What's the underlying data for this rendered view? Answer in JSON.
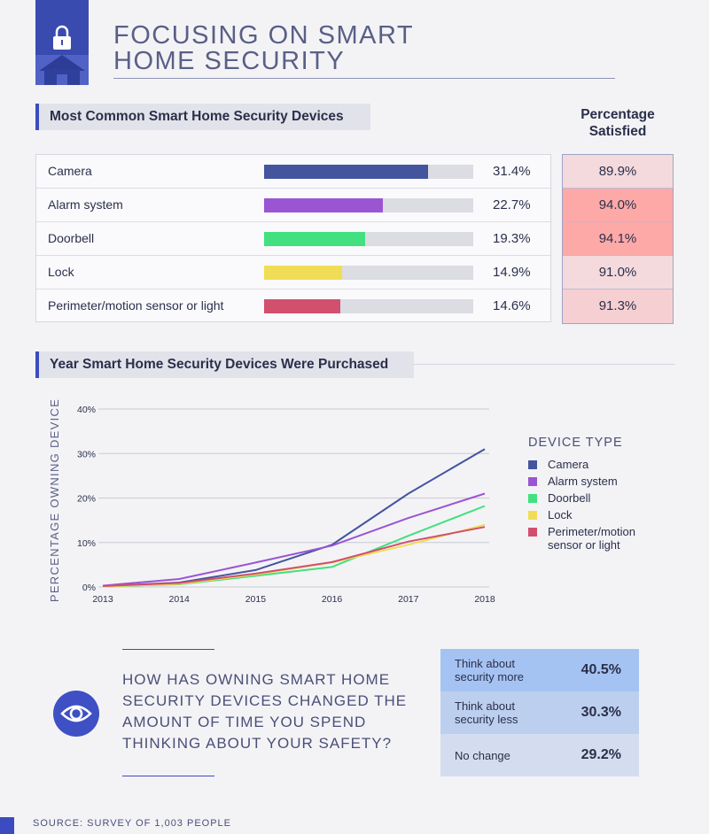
{
  "title": {
    "line1": "FOCUSING ON SMART",
    "line2": "HOME SECURITY"
  },
  "colors": {
    "accent": "#3b4cc0",
    "badge": "#3a4bb0"
  },
  "devices_section": {
    "heading": "Most Common Smart Home Security Devices",
    "satisfied_heading_line1": "Percentage",
    "satisfied_heading_line2": "Satisfied"
  },
  "chart_data": [
    {
      "type": "bar",
      "orientation": "horizontal",
      "title": "Most Common Smart Home Security Devices",
      "categories": [
        "Camera",
        "Alarm system",
        "Doorbell",
        "Lock",
        "Perimeter/motion sensor or light"
      ],
      "values": [
        31.4,
        22.7,
        19.3,
        14.9,
        14.6
      ],
      "value_labels": [
        "31.4%",
        "22.7%",
        "19.3%",
        "14.9%",
        "14.6%"
      ],
      "colors": [
        "#44559e",
        "#9a55d2",
        "#42e07e",
        "#f1dd55",
        "#d24f6e"
      ],
      "xlim": [
        0,
        40
      ],
      "satisfied": {
        "title": "Percentage Satisfied",
        "values": [
          89.9,
          94.0,
          94.1,
          91.0,
          91.3
        ],
        "labels": [
          "89.9%",
          "94.0%",
          "94.1%",
          "91.0%",
          "91.3%"
        ]
      }
    },
    {
      "type": "line",
      "title": "Year Smart Home Security Devices Were Purchased",
      "ylabel": "PERCENTAGE OWNING DEVICE",
      "xlabel": "",
      "x": [
        "2013",
        "2014",
        "2015",
        "2016",
        "2017",
        "2018"
      ],
      "ylim": [
        0,
        40
      ],
      "yticks": [
        "0%",
        "10%",
        "20%",
        "30%",
        "40%"
      ],
      "legend_title": "DEVICE TYPE",
      "series": [
        {
          "name": "Camera",
          "color": "#44559e",
          "values": [
            0.2,
            1.0,
            3.8,
            9.5,
            21.0,
            31.0
          ]
        },
        {
          "name": "Alarm system",
          "color": "#9a55d2",
          "values": [
            0.3,
            1.8,
            5.5,
            9.3,
            15.5,
            21.0
          ]
        },
        {
          "name": "Doorbell",
          "color": "#42e07e",
          "values": [
            0.1,
            0.6,
            2.5,
            4.5,
            11.5,
            18.2
          ]
        },
        {
          "name": "Lock",
          "color": "#f1dd55",
          "values": [
            0.1,
            0.7,
            2.8,
            5.5,
            9.5,
            14.0
          ]
        },
        {
          "name": "Perimeter/motion sensor or light",
          "color": "#d24f6e",
          "values": [
            0.2,
            0.9,
            3.0,
            5.6,
            10.2,
            13.5
          ],
          "legend_lines": [
            "Perimeter/motion",
            "sensor or light"
          ]
        }
      ]
    }
  ],
  "question": {
    "text": "HOW HAS OWNING SMART HOME SECURITY DEVICES CHANGED THE AMOUNT OF TIME YOU SPEND THINKING ABOUT YOUR SAFETY?",
    "answers": [
      {
        "line1": "Think about",
        "line2": "security more",
        "value": "40.5%",
        "color": "#a5c3f2"
      },
      {
        "line1": "Think about",
        "line2": "security less",
        "value": "30.3%",
        "color": "#bccfee"
      },
      {
        "line1": "No change",
        "line2": "",
        "value": "29.2%",
        "color": "#d3ddef"
      }
    ]
  },
  "source": "SOURCE: SURVEY OF 1,003 PEOPLE"
}
